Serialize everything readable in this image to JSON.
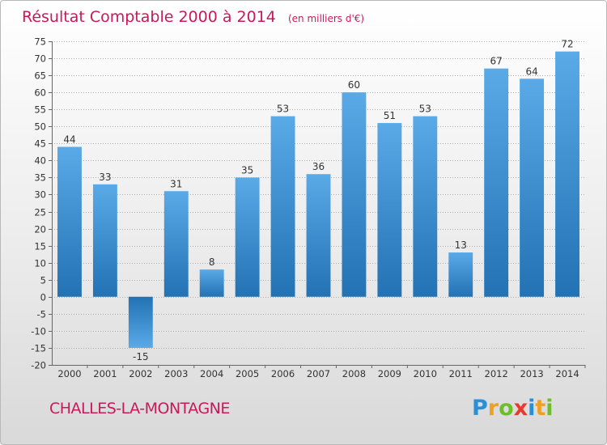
{
  "title": "Résultat Comptable 2000 à 2014",
  "unit": "(en milliers d'€)",
  "place": "CHALLES-LA-MONTAGNE",
  "logo": {
    "letters": [
      "P",
      "r",
      "o",
      "x",
      "i",
      "t",
      "i"
    ],
    "colors": [
      "#2b8fd6",
      "#f0a020",
      "#6cbf2a",
      "#e63a2a",
      "#2b8fd6",
      "#f0a020",
      "#6cbf2a"
    ]
  },
  "colors": {
    "bar_top": "#5aaae8",
    "bar_bottom": "#2272b4"
  },
  "chart_data": {
    "type": "bar",
    "title": "Résultat Comptable 2000 à 2014",
    "ylabel": "en milliers d'€",
    "categories": [
      "2000",
      "2001",
      "2002",
      "2003",
      "2004",
      "2005",
      "2006",
      "2007",
      "2008",
      "2009",
      "2010",
      "2011",
      "2012",
      "2013",
      "2014"
    ],
    "values": [
      44,
      33,
      -15,
      31,
      8,
      35,
      53,
      36,
      60,
      51,
      53,
      13,
      67,
      64,
      72
    ],
    "ylim": [
      -20,
      75
    ],
    "ytick_step": 5,
    "grid": true
  }
}
